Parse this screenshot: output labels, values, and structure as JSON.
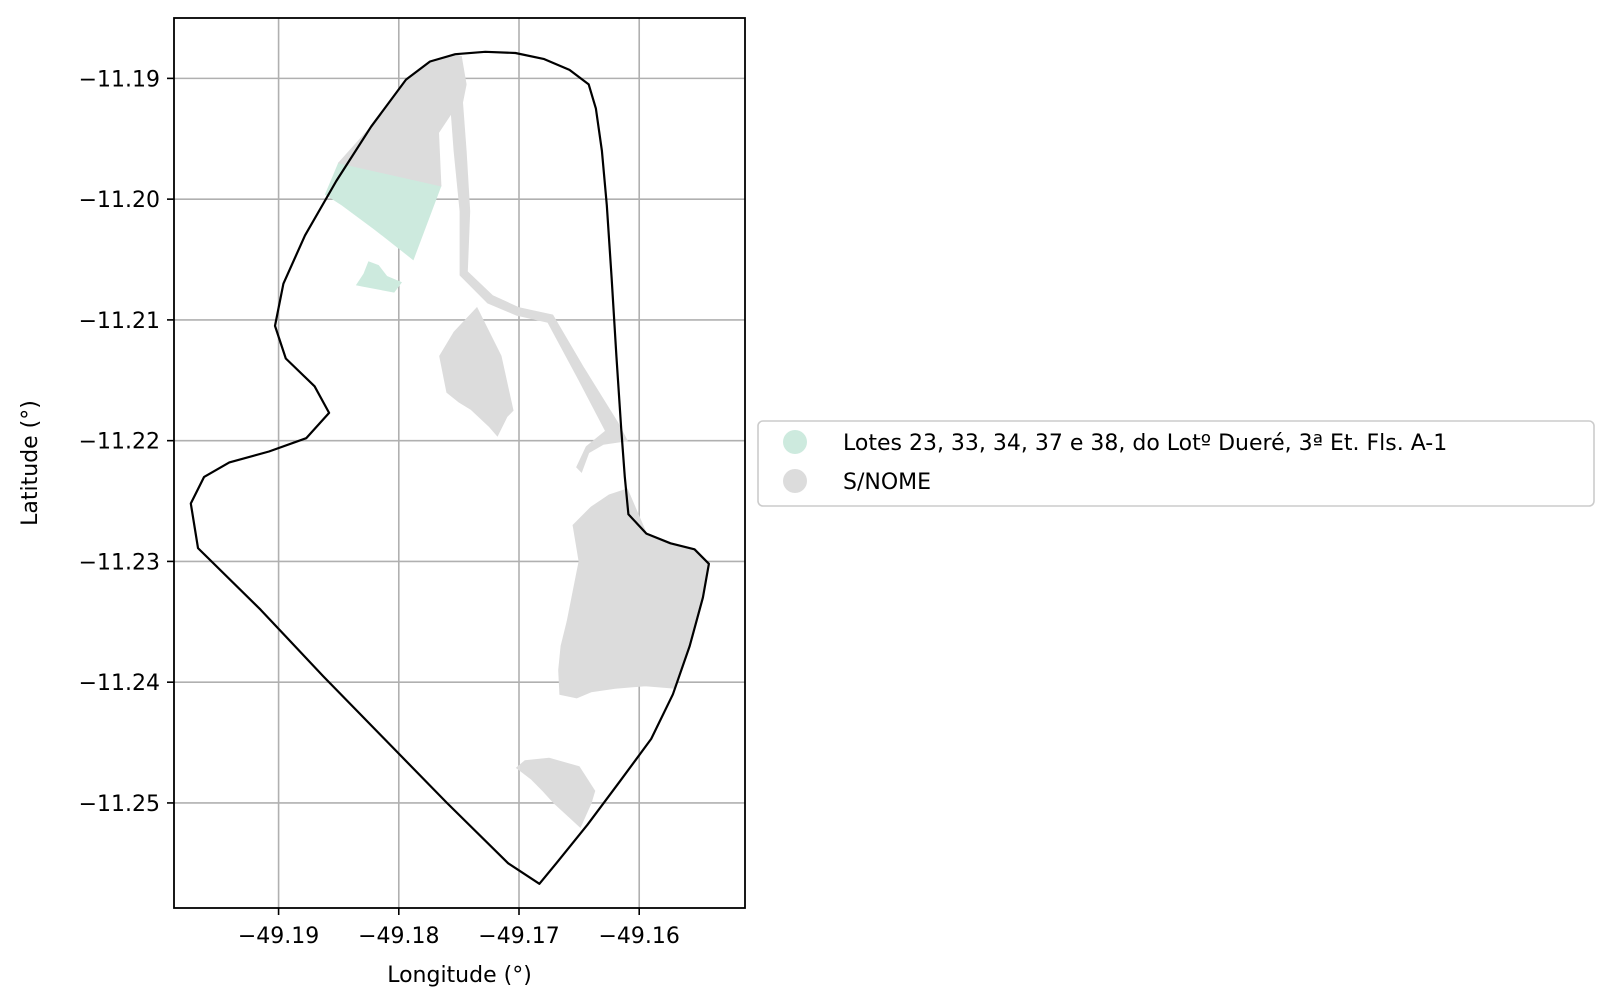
{
  "chart_data": {
    "type": "map",
    "xlabel": "Longitude (°)",
    "ylabel": "Latitude (°)",
    "xlim": [
      -49.1987,
      -49.1512
    ],
    "ylim": [
      -11.2587,
      -11.185
    ],
    "x_ticks": [
      {
        "value": -49.19,
        "label": "−49.19"
      },
      {
        "value": -49.18,
        "label": "−49.18"
      },
      {
        "value": -49.17,
        "label": "−49.17"
      },
      {
        "value": -49.16,
        "label": "−49.16"
      }
    ],
    "y_ticks": [
      {
        "value": -11.19,
        "label": "−11.19"
      },
      {
        "value": -11.2,
        "label": "−11.20"
      },
      {
        "value": -11.21,
        "label": "−11.21"
      },
      {
        "value": -11.22,
        "label": "−11.22"
      },
      {
        "value": -11.23,
        "label": "−11.23"
      },
      {
        "value": -11.24,
        "label": "−11.24"
      },
      {
        "value": -11.25,
        "label": "−11.25"
      }
    ],
    "grid": true,
    "legend": {
      "placement": "center-left outside the axes",
      "entries": [
        {
          "label": "Lotes 23, 33, 34, 37 e 38, do Lotº Dueré, 3ª Et. Fls. A-1",
          "color": "#cdeade"
        },
        {
          "label": "S/NOME",
          "color": "#dcdcdc"
        }
      ]
    },
    "boundary": {
      "color": "#000000",
      "coords": [
        [
          -49.1794,
          -11.1901
        ],
        [
          -49.1774,
          -11.1886
        ],
        [
          -49.1753,
          -11.188
        ],
        [
          -49.1728,
          -11.1878
        ],
        [
          -49.1703,
          -11.1879
        ],
        [
          -49.1679,
          -11.1884
        ],
        [
          -49.1658,
          -11.1893
        ],
        [
          -49.1642,
          -11.1905
        ],
        [
          -49.1636,
          -11.1925
        ],
        [
          -49.1631,
          -11.196
        ],
        [
          -49.1627,
          -11.2005
        ],
        [
          -49.1623,
          -11.2065
        ],
        [
          -49.1619,
          -11.213
        ],
        [
          -49.1615,
          -11.219
        ],
        [
          -49.1612,
          -11.223
        ],
        [
          -49.1609,
          -11.2261
        ],
        [
          -49.1594,
          -11.2277
        ],
        [
          -49.1574,
          -11.2285
        ],
        [
          -49.1554,
          -11.229
        ],
        [
          -49.1542,
          -11.2302
        ],
        [
          -49.1547,
          -11.233
        ],
        [
          -49.1558,
          -11.237
        ],
        [
          -49.1572,
          -11.241
        ],
        [
          -49.159,
          -11.2447
        ],
        [
          -49.1616,
          -11.2482
        ],
        [
          -49.1643,
          -11.2518
        ],
        [
          -49.1669,
          -11.255
        ],
        [
          -49.1683,
          -11.2567
        ],
        [
          -49.1709,
          -11.255
        ],
        [
          -49.176,
          -11.25
        ],
        [
          -49.1812,
          -11.2447
        ],
        [
          -49.1863,
          -11.2395
        ],
        [
          -49.1915,
          -11.234
        ],
        [
          -49.1967,
          -11.2289
        ],
        [
          -49.1973,
          -11.2252
        ],
        [
          -49.1962,
          -11.223
        ],
        [
          -49.1941,
          -11.2218
        ],
        [
          -49.1908,
          -11.2209
        ],
        [
          -49.1877,
          -11.2198
        ],
        [
          -49.1858,
          -11.2177
        ],
        [
          -49.187,
          -11.2155
        ],
        [
          -49.1894,
          -11.2132
        ],
        [
          -49.1903,
          -11.2105
        ],
        [
          -49.1896,
          -11.207
        ],
        [
          -49.1878,
          -11.203
        ],
        [
          -49.1852,
          -11.1985
        ],
        [
          -49.1823,
          -11.194
        ],
        [
          -49.1794,
          -11.1901
        ]
      ]
    },
    "regions": [
      {
        "name": "Lotes 23, 33, 34, 37 e 38, do Lotº Dueré, 3ª Et. Fls. A-1",
        "color": "#cdeade",
        "polygons": [
          [
            [
              -49.185,
              -11.197
            ],
            [
              -49.1765,
              -11.1989
            ],
            [
              -49.1788,
              -11.205
            ],
            [
              -49.182,
              -11.2025
            ],
            [
              -49.1847,
              -11.2005
            ],
            [
              -49.1861,
              -11.1996
            ],
            [
              -49.185,
              -11.197
            ]
          ],
          [
            [
              -49.183,
              -11.2072
            ],
            [
              -49.1804,
              -11.2077
            ],
            [
              -49.1798,
              -11.2069
            ],
            [
              -49.181,
              -11.2064
            ],
            [
              -49.1817,
              -11.2055
            ],
            [
              -49.1825,
              -11.2052
            ],
            [
              -49.1829,
              -11.2062
            ],
            [
              -49.1835,
              -11.2071
            ],
            [
              -49.183,
              -11.2072
            ]
          ]
        ]
      },
      {
        "name": "S/NOME",
        "color": "#dcdcdc",
        "polygons": [
          [
            [
              -49.185,
              -11.197
            ],
            [
              -49.1765,
              -11.1989
            ],
            [
              -49.1767,
              -11.1945
            ],
            [
              -49.1757,
              -11.193
            ],
            [
              -49.175,
              -11.192
            ],
            [
              -49.1745,
              -11.1905
            ],
            [
              -49.1748,
              -11.1882
            ],
            [
              -49.1754,
              -11.188
            ],
            [
              -49.1774,
              -11.1886
            ],
            [
              -49.1794,
              -11.1901
            ],
            [
              -49.1823,
              -11.194
            ],
            [
              -49.185,
              -11.197
            ]
          ],
          [
            [
              -49.1748,
              -11.1882
            ],
            [
              -49.1744,
              -11.1905
            ],
            [
              -49.1747,
              -11.192
            ],
            [
              -49.1744,
              -11.196
            ],
            [
              -49.1741,
              -11.201
            ],
            [
              -49.1743,
              -11.206
            ],
            [
              -49.1722,
              -11.208
            ],
            [
              -49.17,
              -11.209
            ],
            [
              -49.1672,
              -11.2096
            ],
            [
              -49.1646,
              -11.214
            ],
            [
              -49.1618,
              -11.2185
            ],
            [
              -49.161,
              -11.22
            ],
            [
              -49.163,
              -11.2203
            ],
            [
              -49.1642,
              -11.221
            ],
            [
              -49.1648,
              -11.2226
            ],
            [
              -49.1652,
              -11.2222
            ],
            [
              -49.1644,
              -11.2205
            ],
            [
              -49.1628,
              -11.2192
            ],
            [
              -49.165,
              -11.215
            ],
            [
              -49.1676,
              -11.2102
            ],
            [
              -49.1702,
              -11.2096
            ],
            [
              -49.1726,
              -11.2086
            ],
            [
              -49.1749,
              -11.2063
            ],
            [
              -49.1749,
              -11.201
            ],
            [
              -49.1754,
              -11.196
            ],
            [
              -49.1757,
              -11.192
            ],
            [
              -49.176,
              -11.1905
            ],
            [
              -49.1758,
              -11.1884
            ],
            [
              -49.1748,
              -11.1882
            ]
          ],
          [
            [
              -49.1735,
              -11.209
            ],
            [
              -49.1754,
              -11.211
            ],
            [
              -49.1766,
              -11.213
            ],
            [
              -49.1762,
              -11.215
            ],
            [
              -49.176,
              -11.216
            ],
            [
              -49.175,
              -11.2168
            ],
            [
              -49.174,
              -11.2174
            ],
            [
              -49.1725,
              -11.2188
            ],
            [
              -49.1718,
              -11.2196
            ],
            [
              -49.171,
              -11.218
            ],
            [
              -49.1705,
              -11.2175
            ],
            [
              -49.1715,
              -11.213
            ],
            [
              -49.1735,
              -11.209
            ]
          ],
          [
            [
              -49.161,
              -11.224
            ],
            [
              -49.1594,
              -11.2277
            ],
            [
              -49.1574,
              -11.2285
            ],
            [
              -49.1554,
              -11.229
            ],
            [
              -49.1542,
              -11.2302
            ],
            [
              -49.1547,
              -11.233
            ],
            [
              -49.1558,
              -11.237
            ],
            [
              -49.157,
              -11.2405
            ],
            [
              -49.1595,
              -11.2403
            ],
            [
              -49.162,
              -11.2405
            ],
            [
              -49.164,
              -11.2408
            ],
            [
              -49.1652,
              -11.2413
            ],
            [
              -49.1666,
              -11.241
            ],
            [
              -49.1667,
              -11.239
            ],
            [
              -49.1665,
              -11.237
            ],
            [
              -49.166,
              -11.235
            ],
            [
              -49.1655,
              -11.2325
            ],
            [
              -49.165,
              -11.23
            ],
            [
              -49.1655,
              -11.227
            ],
            [
              -49.164,
              -11.2255
            ],
            [
              -49.1625,
              -11.2245
            ],
            [
              -49.161,
              -11.224
            ]
          ],
          [
            [
              -49.165,
              -11.247
            ],
            [
              -49.1675,
              -11.2463
            ],
            [
              -49.1695,
              -11.2465
            ],
            [
              -49.1702,
              -11.2471
            ],
            [
              -49.169,
              -11.248
            ],
            [
              -49.168,
              -11.249
            ],
            [
              -49.1671,
              -11.25
            ],
            [
              -49.166,
              -11.251
            ],
            [
              -49.1649,
              -11.252
            ],
            [
              -49.164,
              -11.25
            ],
            [
              -49.1637,
              -11.249
            ],
            [
              -49.165,
              -11.247
            ]
          ]
        ]
      }
    ]
  }
}
